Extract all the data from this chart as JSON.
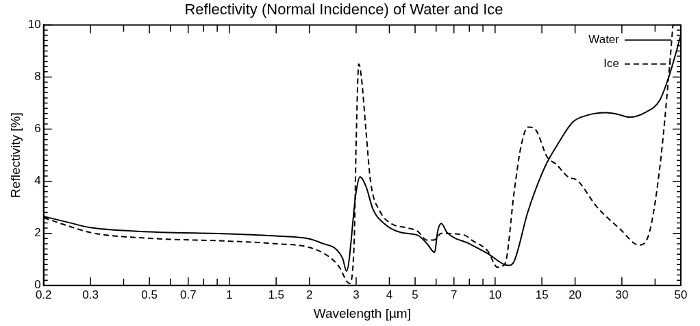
{
  "chart_data": {
    "type": "line",
    "title": "Reflectivity (Normal Incidence) of Water and Ice",
    "xlabel": "Wavelength [µm]",
    "ylabel": "Reflectivity [%]",
    "log": "x",
    "grid": false,
    "legend": "top right",
    "marker": "none",
    "xlim": [
      0.2,
      50
    ],
    "ylim": [
      0,
      10
    ],
    "xticks": [
      0.2,
      0.3,
      {
        "value": 0.4,
        "label": null
      },
      0.5,
      {
        "value": 0.6,
        "label": null
      },
      0.7,
      {
        "value": 0.8,
        "label": null
      },
      {
        "value": 0.9,
        "label": null
      },
      1,
      1.5,
      2,
      3,
      4,
      5,
      {
        "value": 6,
        "label": null
      },
      7,
      {
        "value": 8,
        "label": null
      },
      {
        "value": 9,
        "label": null
      },
      10,
      15,
      20,
      30,
      {
        "value": 40,
        "label": null
      },
      50
    ],
    "yticks": [
      0,
      {
        "value": 0.2,
        "label": null
      },
      {
        "value": 0.4,
        "label": null
      },
      {
        "value": 0.6,
        "label": null
      },
      {
        "value": 0.8,
        "label": null
      },
      {
        "value": 1,
        "label": null
      },
      {
        "value": 1.2,
        "label": null
      },
      {
        "value": 1.4,
        "label": null
      },
      {
        "value": 1.6,
        "label": null
      },
      {
        "value": 1.8,
        "label": null
      },
      2,
      {
        "value": 2.2,
        "label": null
      },
      {
        "value": 2.4,
        "label": null
      },
      {
        "value": 2.6,
        "label": null
      },
      {
        "value": 2.8,
        "label": null
      },
      {
        "value": 3,
        "label": null
      },
      {
        "value": 3.2,
        "label": null
      },
      {
        "value": 3.4,
        "label": null
      },
      {
        "value": 3.6,
        "label": null
      },
      {
        "value": 3.8,
        "label": null
      },
      4,
      {
        "value": 4.2,
        "label": null
      },
      {
        "value": 4.4,
        "label": null
      },
      {
        "value": 4.6,
        "label": null
      },
      {
        "value": 4.8,
        "label": null
      },
      {
        "value": 5,
        "label": null
      },
      {
        "value": 5.2,
        "label": null
      },
      {
        "value": 5.4,
        "label": null
      },
      {
        "value": 5.6,
        "label": null
      },
      {
        "value": 5.8,
        "label": null
      },
      6,
      {
        "value": 6.2,
        "label": null
      },
      {
        "value": 6.4,
        "label": null
      },
      {
        "value": 6.6,
        "label": null
      },
      {
        "value": 6.8,
        "label": null
      },
      {
        "value": 7,
        "label": null
      },
      {
        "value": 7.2,
        "label": null
      },
      {
        "value": 7.4,
        "label": null
      },
      {
        "value": 7.6,
        "label": null
      },
      {
        "value": 7.8,
        "label": null
      },
      8,
      {
        "value": 8.2,
        "label": null
      },
      {
        "value": 8.4,
        "label": null
      },
      {
        "value": 8.6,
        "label": null
      },
      {
        "value": 8.8,
        "label": null
      },
      {
        "value": 9,
        "label": null
      },
      {
        "value": 9.2,
        "label": null
      },
      {
        "value": 9.4,
        "label": null
      },
      {
        "value": 9.6,
        "label": null
      },
      {
        "value": 9.8,
        "label": null
      },
      10
    ],
    "series": [
      {
        "name": "Water",
        "color": "#000000",
        "line_style": "solid",
        "x": [
          0.2,
          0.25,
          0.3,
          0.5,
          1,
          1.5,
          2,
          2.26,
          2.51,
          2.67,
          2.76,
          3.0,
          3.1,
          3.27,
          3.47,
          3.84,
          4.43,
          5.11,
          5.55,
          5.92,
          6.08,
          6.27,
          6.6,
          8.0,
          9.4,
          10.9,
          11.3,
          11.8,
          13.3,
          15.4,
          17.4,
          19.6,
          22.2,
          26.1,
          28.9,
          32.0,
          36.9,
          41.7,
          45.3,
          50
        ],
        "values": [
          2.65,
          2.41,
          2.22,
          2.06,
          1.98,
          1.9,
          1.79,
          1.6,
          1.41,
          1.03,
          0.55,
          3.6,
          4.17,
          3.79,
          2.93,
          2.36,
          2.03,
          1.93,
          1.6,
          1.27,
          2.08,
          2.38,
          2.03,
          1.6,
          1.22,
          0.79,
          0.77,
          0.93,
          2.84,
          4.55,
          5.5,
          6.27,
          6.53,
          6.63,
          6.57,
          6.46,
          6.65,
          7.12,
          8.08,
          9.6
        ]
      },
      {
        "name": "Ice",
        "color": "#000000",
        "line_style": "dashed",
        "x": [
          0.2,
          0.25,
          0.3,
          0.5,
          1,
          1.5,
          2,
          2.36,
          2.58,
          2.83,
          2.95,
          3.0,
          3.07,
          3.14,
          3.27,
          3.4,
          3.69,
          4.09,
          4.62,
          5.11,
          5.55,
          5.92,
          6.27,
          7.68,
          8.17,
          9.4,
          10.2,
          10.9,
          11.8,
          12.5,
          13.3,
          14.2,
          15.7,
          17.0,
          18.8,
          20.4,
          24.1,
          29.5,
          34.8,
          37.7,
          41.7,
          45.3,
          46.7
        ],
        "values": [
          2.6,
          2.27,
          2.03,
          1.81,
          1.7,
          1.6,
          1.46,
          1.12,
          0.74,
          0.08,
          1.7,
          5.5,
          8.5,
          7.98,
          5.89,
          3.98,
          2.84,
          2.36,
          2.22,
          2.08,
          1.74,
          1.75,
          2.0,
          1.93,
          1.74,
          1.31,
          0.7,
          0.84,
          3.6,
          5.31,
          6.08,
          5.98,
          4.93,
          4.65,
          4.17,
          4.03,
          3.03,
          2.17,
          1.55,
          1.89,
          4.55,
          8.36,
          10.0
        ]
      }
    ]
  }
}
